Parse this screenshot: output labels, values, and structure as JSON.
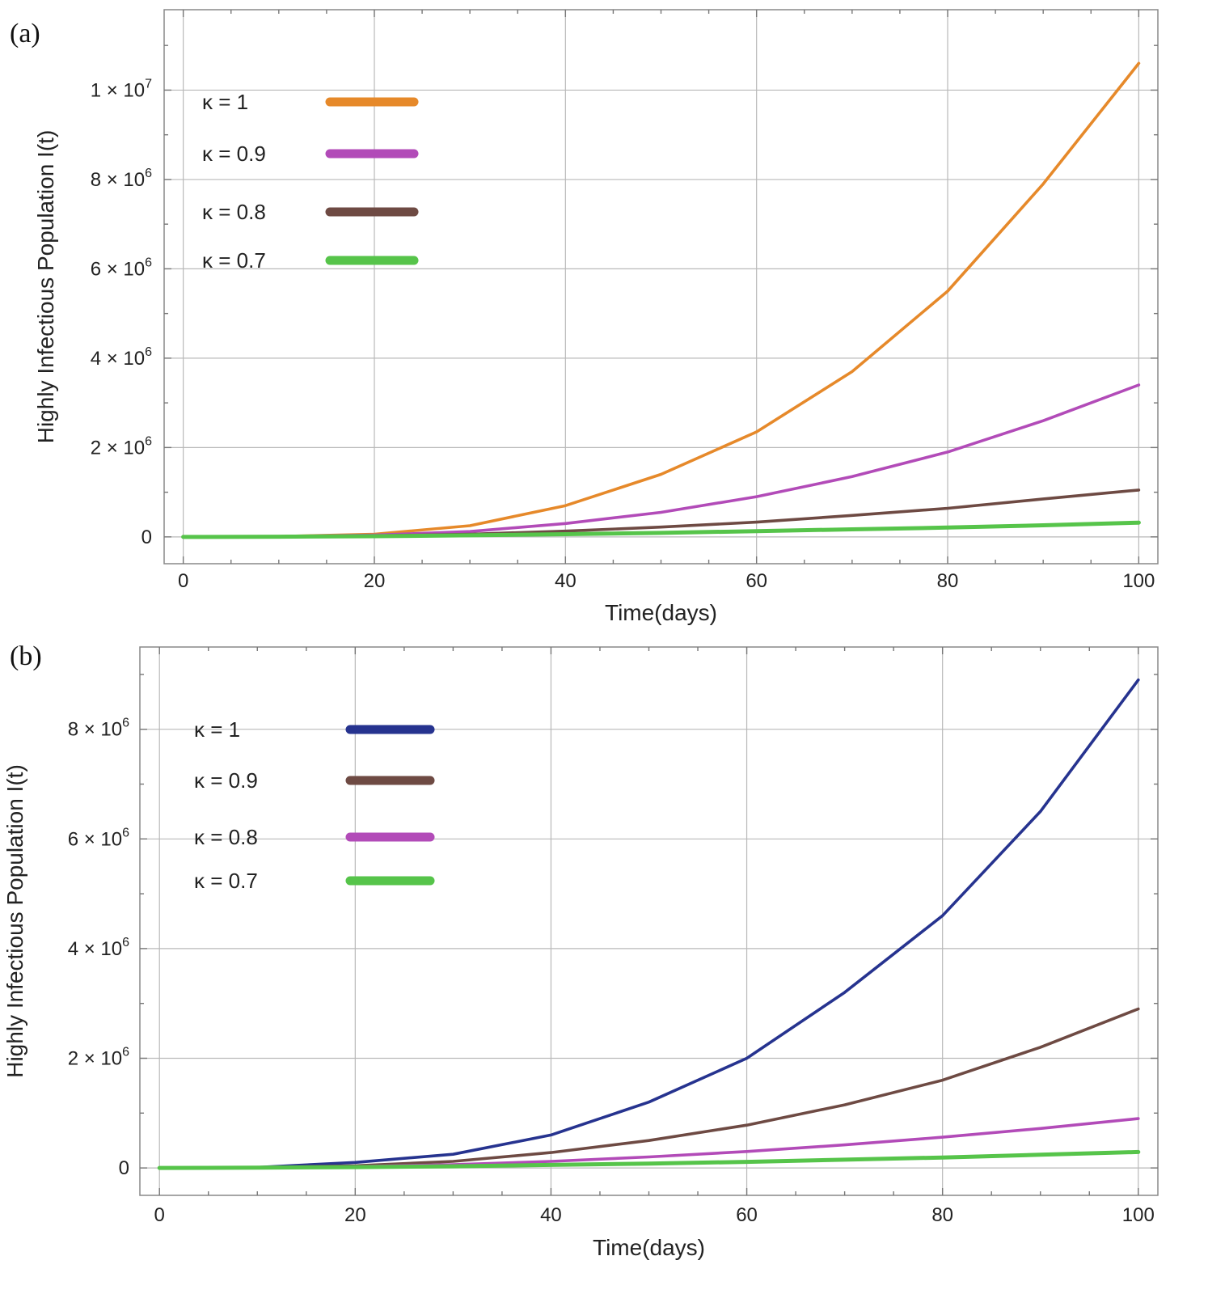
{
  "chart_data": [
    {
      "type": "line",
      "panel_label": "(a)",
      "xlabel": "Time(days)",
      "ylabel": "Highly Infectious Population I(t)",
      "xlim": [
        -2,
        102
      ],
      "ylim": [
        -600000,
        11800000
      ],
      "x_ticks": [
        0,
        20,
        40,
        60,
        80,
        100
      ],
      "x_tick_labels": [
        "0",
        "20",
        "40",
        "60",
        "80",
        "100"
      ],
      "y_ticks": [
        0,
        2000000,
        4000000,
        6000000,
        8000000,
        10000000
      ],
      "y_tick_labels": [
        {
          "mant": "0",
          "exp": ""
        },
        {
          "mant": "2 × 10",
          "exp": "6"
        },
        {
          "mant": "4 × 10",
          "exp": "6"
        },
        {
          "mant": "6 × 10",
          "exp": "6"
        },
        {
          "mant": "8 × 10",
          "exp": "6"
        },
        {
          "mant": "1 × 10",
          "exp": "7"
        }
      ],
      "grid": true,
      "legend_position": "top-left",
      "x": [
        0,
        10,
        20,
        30,
        40,
        50,
        60,
        70,
        80,
        90,
        100
      ],
      "series": [
        {
          "name": "κ = 1",
          "color": "#e6892a",
          "values": [
            0,
            10000,
            60000,
            250000,
            700000,
            1400000,
            2350000,
            3700000,
            5500000,
            7900000,
            10600000
          ]
        },
        {
          "name": "κ = 0.9",
          "color": "#b24bb8",
          "values": [
            0,
            8000,
            40000,
            120000,
            300000,
            550000,
            900000,
            1350000,
            1900000,
            2600000,
            3400000
          ]
        },
        {
          "name": "κ = 0.8",
          "color": "#6e4a43",
          "values": [
            0,
            6000,
            25000,
            60000,
            130000,
            220000,
            330000,
            480000,
            640000,
            850000,
            1050000
          ]
        },
        {
          "name": "κ = 0.7",
          "color": "#56c44a",
          "values": [
            0,
            5000,
            15000,
            35000,
            60000,
            90000,
            130000,
            170000,
            210000,
            260000,
            320000
          ]
        }
      ]
    },
    {
      "type": "line",
      "panel_label": "(b)",
      "xlabel": "Time(days)",
      "ylabel": "Highly Infectious Population I(t)",
      "xlim": [
        -2,
        102
      ],
      "ylim": [
        -500000,
        9500000
      ],
      "x_ticks": [
        0,
        20,
        40,
        60,
        80,
        100
      ],
      "x_tick_labels": [
        "0",
        "20",
        "40",
        "60",
        "80",
        "100"
      ],
      "y_ticks": [
        0,
        2000000,
        4000000,
        6000000,
        8000000
      ],
      "y_tick_labels": [
        {
          "mant": "0",
          "exp": ""
        },
        {
          "mant": "2 × 10",
          "exp": "6"
        },
        {
          "mant": "4 × 10",
          "exp": "6"
        },
        {
          "mant": "6 × 10",
          "exp": "6"
        },
        {
          "mant": "8 × 10",
          "exp": "6"
        }
      ],
      "grid": true,
      "legend_position": "top-left",
      "x": [
        0,
        10,
        20,
        30,
        40,
        50,
        60,
        70,
        80,
        90,
        100
      ],
      "series": [
        {
          "name": "κ = 1",
          "color": "#26338f",
          "values": [
            0,
            10000,
            100000,
            250000,
            600000,
            1200000,
            2000000,
            3200000,
            4600000,
            6500000,
            8900000
          ]
        },
        {
          "name": "κ = 0.9",
          "color": "#6e4a43",
          "values": [
            0,
            8000,
            40000,
            120000,
            280000,
            500000,
            780000,
            1150000,
            1600000,
            2200000,
            2900000
          ]
        },
        {
          "name": "κ = 0.8",
          "color": "#b24bb8",
          "values": [
            0,
            6000,
            25000,
            60000,
            120000,
            200000,
            300000,
            420000,
            560000,
            720000,
            900000
          ]
        },
        {
          "name": "κ = 0.7",
          "color": "#56c44a",
          "values": [
            0,
            5000,
            15000,
            30000,
            55000,
            80000,
            110000,
            150000,
            190000,
            240000,
            290000
          ]
        }
      ]
    }
  ]
}
